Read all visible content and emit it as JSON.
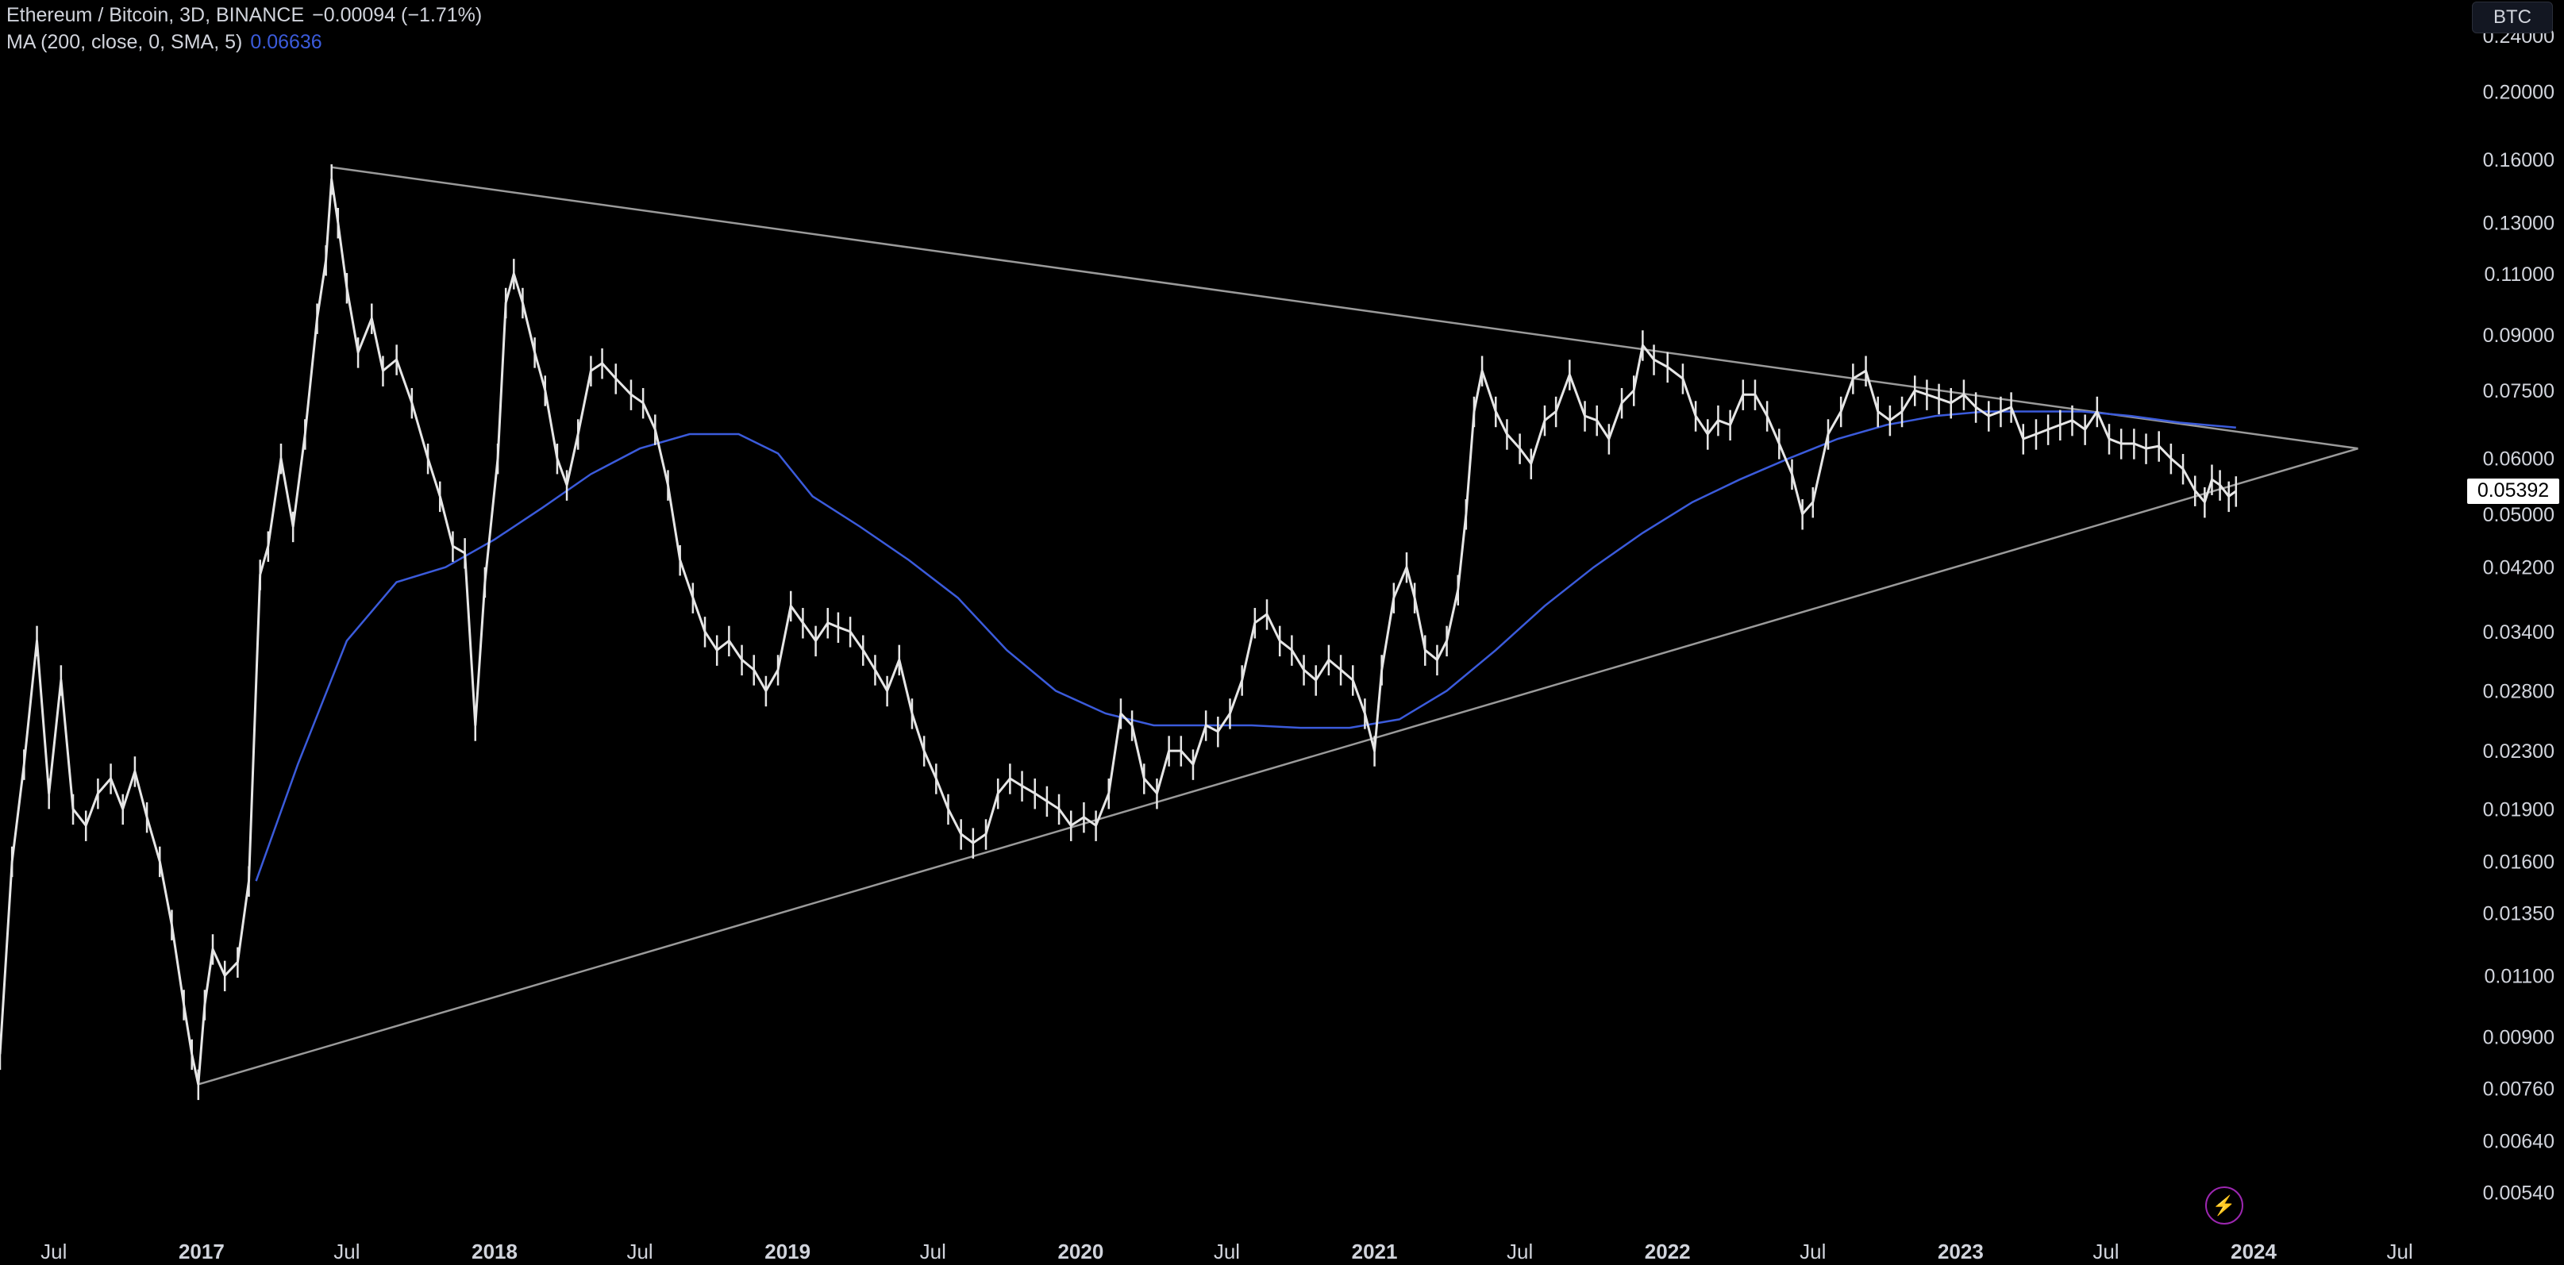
{
  "legend": {
    "symbol": "Ethereum / Bitcoin, 3D, BINANCE",
    "change": "−0.00094 (−1.71%)",
    "ma_label": "MA (200, close, 0, SMA, 5)",
    "ma_value": "0.06636"
  },
  "currency": "BTC",
  "last_price_label": "0.05392",
  "colors": {
    "background": "#000000",
    "price": "#e6e6e6",
    "ma": "#3b5bdb",
    "trendline": "#9a9a9a",
    "text": "#d1d4dc"
  },
  "icons": {
    "lightning": "lightning-icon"
  },
  "chart_data": {
    "type": "line",
    "y_scale": "log",
    "ylim": [
      0.0049,
      0.27
    ],
    "xlim": [
      "2016-04-25",
      "2024-09-15"
    ],
    "y_ticks": [
      "0.24000",
      "0.20000",
      "0.16000",
      "0.13000",
      "0.11000",
      "0.09000",
      "0.07500",
      "0.06000",
      "0.05000",
      "0.04200",
      "0.03400",
      "0.02800",
      "0.02300",
      "0.01900",
      "0.01600",
      "0.01350",
      "0.01100",
      "0.00900",
      "0.00760",
      "0.00640",
      "0.00540"
    ],
    "x_ticks": [
      {
        "label": "Jul",
        "date": "2016-07-01",
        "year": false
      },
      {
        "label": "2017",
        "date": "2017-01-01",
        "year": true
      },
      {
        "label": "Jul",
        "date": "2017-07-01",
        "year": false
      },
      {
        "label": "2018",
        "date": "2018-01-01",
        "year": true
      },
      {
        "label": "Jul",
        "date": "2018-07-01",
        "year": false
      },
      {
        "label": "2019",
        "date": "2019-01-01",
        "year": true
      },
      {
        "label": "Jul",
        "date": "2019-07-01",
        "year": false
      },
      {
        "label": "2020",
        "date": "2020-01-01",
        "year": true
      },
      {
        "label": "Jul",
        "date": "2020-07-01",
        "year": false
      },
      {
        "label": "2021",
        "date": "2021-01-01",
        "year": true
      },
      {
        "label": "Jul",
        "date": "2021-07-01",
        "year": false
      },
      {
        "label": "2022",
        "date": "2022-01-01",
        "year": true
      },
      {
        "label": "Jul",
        "date": "2022-07-01",
        "year": false
      },
      {
        "label": "2023",
        "date": "2023-01-01",
        "year": true
      },
      {
        "label": "Jul",
        "date": "2023-07-01",
        "year": false
      },
      {
        "label": "2024",
        "date": "2024-01-01",
        "year": true
      },
      {
        "label": "Jul",
        "date": "2024-07-01",
        "year": false
      }
    ],
    "price": [
      [
        "2016-04-25",
        0.0085
      ],
      [
        "2016-05-10",
        0.016
      ],
      [
        "2016-05-25",
        0.022
      ],
      [
        "2016-06-10",
        0.033
      ],
      [
        "2016-06-25",
        0.02
      ],
      [
        "2016-07-10",
        0.029
      ],
      [
        "2016-07-25",
        0.019
      ],
      [
        "2016-08-10",
        0.018
      ],
      [
        "2016-08-25",
        0.02
      ],
      [
        "2016-09-10",
        0.021
      ],
      [
        "2016-09-25",
        0.019
      ],
      [
        "2016-10-10",
        0.0215
      ],
      [
        "2016-10-25",
        0.0185
      ],
      [
        "2016-11-10",
        0.016
      ],
      [
        "2016-11-25",
        0.013
      ],
      [
        "2016-12-10",
        0.01
      ],
      [
        "2016-12-20",
        0.0085
      ],
      [
        "2016-12-28",
        0.0077
      ],
      [
        "2017-01-05",
        0.01
      ],
      [
        "2017-01-15",
        0.012
      ],
      [
        "2017-01-30",
        0.011
      ],
      [
        "2017-02-15",
        0.0115
      ],
      [
        "2017-03-01",
        0.015
      ],
      [
        "2017-03-15",
        0.041
      ],
      [
        "2017-03-25",
        0.045
      ],
      [
        "2017-04-10",
        0.06
      ],
      [
        "2017-04-25",
        0.048
      ],
      [
        "2017-05-10",
        0.065
      ],
      [
        "2017-05-25",
        0.095
      ],
      [
        "2017-06-05",
        0.115
      ],
      [
        "2017-06-12",
        0.15
      ],
      [
        "2017-06-20",
        0.13
      ],
      [
        "2017-07-01",
        0.105
      ],
      [
        "2017-07-15",
        0.085
      ],
      [
        "2017-08-01",
        0.095
      ],
      [
        "2017-08-15",
        0.08
      ],
      [
        "2017-09-01",
        0.083
      ],
      [
        "2017-09-20",
        0.072
      ],
      [
        "2017-10-10",
        0.06
      ],
      [
        "2017-10-25",
        0.053
      ],
      [
        "2017-11-10",
        0.045
      ],
      [
        "2017-11-25",
        0.044
      ],
      [
        "2017-12-08",
        0.025
      ],
      [
        "2017-12-20",
        0.04
      ],
      [
        "2018-01-05",
        0.06
      ],
      [
        "2018-01-15",
        0.1
      ],
      [
        "2018-01-25",
        0.11
      ],
      [
        "2018-02-05",
        0.1
      ],
      [
        "2018-02-20",
        0.085
      ],
      [
        "2018-03-05",
        0.075
      ],
      [
        "2018-03-20",
        0.06
      ],
      [
        "2018-04-01",
        0.055
      ],
      [
        "2018-04-15",
        0.065
      ],
      [
        "2018-05-01",
        0.08
      ],
      [
        "2018-05-15",
        0.082
      ],
      [
        "2018-06-01",
        0.078
      ],
      [
        "2018-06-20",
        0.074
      ],
      [
        "2018-07-05",
        0.072
      ],
      [
        "2018-07-20",
        0.066
      ],
      [
        "2018-08-05",
        0.055
      ],
      [
        "2018-08-20",
        0.043
      ],
      [
        "2018-09-05",
        0.038
      ],
      [
        "2018-09-20",
        0.034
      ],
      [
        "2018-10-05",
        0.032
      ],
      [
        "2018-10-20",
        0.033
      ],
      [
        "2018-11-05",
        0.031
      ],
      [
        "2018-11-20",
        0.03
      ],
      [
        "2018-12-05",
        0.028
      ],
      [
        "2018-12-20",
        0.03
      ],
      [
        "2019-01-05",
        0.037
      ],
      [
        "2019-01-20",
        0.035
      ],
      [
        "2019-02-05",
        0.033
      ],
      [
        "2019-02-20",
        0.035
      ],
      [
        "2019-03-05",
        0.0345
      ],
      [
        "2019-03-20",
        0.034
      ],
      [
        "2019-04-05",
        0.032
      ],
      [
        "2019-04-20",
        0.03
      ],
      [
        "2019-05-05",
        0.028
      ],
      [
        "2019-05-20",
        0.031
      ],
      [
        "2019-06-05",
        0.026
      ],
      [
        "2019-06-20",
        0.023
      ],
      [
        "2019-07-05",
        0.021
      ],
      [
        "2019-07-20",
        0.019
      ],
      [
        "2019-08-05",
        0.0175
      ],
      [
        "2019-08-20",
        0.017
      ],
      [
        "2019-09-05",
        0.0175
      ],
      [
        "2019-09-20",
        0.02
      ],
      [
        "2019-10-05",
        0.021
      ],
      [
        "2019-10-20",
        0.0205
      ],
      [
        "2019-11-05",
        0.02
      ],
      [
        "2019-11-20",
        0.0195
      ],
      [
        "2019-12-05",
        0.019
      ],
      [
        "2019-12-20",
        0.018
      ],
      [
        "2020-01-05",
        0.0185
      ],
      [
        "2020-01-20",
        0.018
      ],
      [
        "2020-02-05",
        0.02
      ],
      [
        "2020-02-20",
        0.026
      ],
      [
        "2020-03-05",
        0.025
      ],
      [
        "2020-03-20",
        0.021
      ],
      [
        "2020-04-05",
        0.02
      ],
      [
        "2020-04-20",
        0.023
      ],
      [
        "2020-05-05",
        0.023
      ],
      [
        "2020-05-20",
        0.022
      ],
      [
        "2020-06-05",
        0.025
      ],
      [
        "2020-06-20",
        0.0245
      ],
      [
        "2020-07-05",
        0.026
      ],
      [
        "2020-07-20",
        0.029
      ],
      [
        "2020-08-05",
        0.035
      ],
      [
        "2020-08-20",
        0.036
      ],
      [
        "2020-09-05",
        0.033
      ],
      [
        "2020-09-20",
        0.032
      ],
      [
        "2020-10-05",
        0.03
      ],
      [
        "2020-10-20",
        0.029
      ],
      [
        "2020-11-05",
        0.031
      ],
      [
        "2020-11-20",
        0.03
      ],
      [
        "2020-12-05",
        0.029
      ],
      [
        "2020-12-20",
        0.026
      ],
      [
        "2021-01-01",
        0.023
      ],
      [
        "2021-01-10",
        0.03
      ],
      [
        "2021-01-25",
        0.038
      ],
      [
        "2021-02-10",
        0.042
      ],
      [
        "2021-02-20",
        0.038
      ],
      [
        "2021-03-05",
        0.032
      ],
      [
        "2021-03-20",
        0.031
      ],
      [
        "2021-04-01",
        0.033
      ],
      [
        "2021-04-15",
        0.039
      ],
      [
        "2021-04-25",
        0.05
      ],
      [
        "2021-05-05",
        0.07
      ],
      [
        "2021-05-15",
        0.08
      ],
      [
        "2021-06-01",
        0.07
      ],
      [
        "2021-06-15",
        0.065
      ],
      [
        "2021-07-01",
        0.062
      ],
      [
        "2021-07-15",
        0.059
      ],
      [
        "2021-08-01",
        0.068
      ],
      [
        "2021-08-15",
        0.07
      ],
      [
        "2021-09-01",
        0.079
      ],
      [
        "2021-09-20",
        0.069
      ],
      [
        "2021-10-05",
        0.068
      ],
      [
        "2021-10-20",
        0.064
      ],
      [
        "2021-11-05",
        0.072
      ],
      [
        "2021-11-20",
        0.075
      ],
      [
        "2021-12-01",
        0.087
      ],
      [
        "2021-12-15",
        0.083
      ],
      [
        "2022-01-01",
        0.081
      ],
      [
        "2022-01-20",
        0.078
      ],
      [
        "2022-02-05",
        0.069
      ],
      [
        "2022-02-20",
        0.065
      ],
      [
        "2022-03-05",
        0.068
      ],
      [
        "2022-03-20",
        0.067
      ],
      [
        "2022-04-05",
        0.074
      ],
      [
        "2022-04-20",
        0.074
      ],
      [
        "2022-05-05",
        0.069
      ],
      [
        "2022-05-20",
        0.063
      ],
      [
        "2022-06-05",
        0.057
      ],
      [
        "2022-06-18",
        0.05
      ],
      [
        "2022-07-01",
        0.052
      ],
      [
        "2022-07-20",
        0.065
      ],
      [
        "2022-08-05",
        0.07
      ],
      [
        "2022-08-20",
        0.078
      ],
      [
        "2022-09-05",
        0.08
      ],
      [
        "2022-09-20",
        0.07
      ],
      [
        "2022-10-05",
        0.068
      ],
      [
        "2022-10-20",
        0.07
      ],
      [
        "2022-11-05",
        0.075
      ],
      [
        "2022-11-20",
        0.074
      ],
      [
        "2022-12-05",
        0.073
      ],
      [
        "2022-12-20",
        0.072
      ],
      [
        "2023-01-05",
        0.074
      ],
      [
        "2023-01-20",
        0.071
      ],
      [
        "2023-02-05",
        0.069
      ],
      [
        "2023-02-20",
        0.07
      ],
      [
        "2023-03-05",
        0.071
      ],
      [
        "2023-03-20",
        0.064
      ],
      [
        "2023-04-05",
        0.065
      ],
      [
        "2023-04-20",
        0.066
      ],
      [
        "2023-05-05",
        0.067
      ],
      [
        "2023-05-20",
        0.068
      ],
      [
        "2023-06-05",
        0.066
      ],
      [
        "2023-06-20",
        0.07
      ],
      [
        "2023-07-05",
        0.064
      ],
      [
        "2023-07-20",
        0.063
      ],
      [
        "2023-08-05",
        0.063
      ],
      [
        "2023-08-20",
        0.062
      ],
      [
        "2023-09-05",
        0.0625
      ],
      [
        "2023-09-20",
        0.06
      ],
      [
        "2023-10-05",
        0.058
      ],
      [
        "2023-10-20",
        0.054
      ],
      [
        "2023-11-01",
        0.052
      ],
      [
        "2023-11-10",
        0.056
      ],
      [
        "2023-11-20",
        0.055
      ],
      [
        "2023-12-01",
        0.053
      ],
      [
        "2023-12-10",
        0.0539
      ]
    ],
    "ma": [
      [
        "2017-03-10",
        0.015
      ],
      [
        "2017-05-01",
        0.022
      ],
      [
        "2017-07-01",
        0.033
      ],
      [
        "2017-09-01",
        0.04
      ],
      [
        "2017-11-01",
        0.042
      ],
      [
        "2018-01-01",
        0.046
      ],
      [
        "2018-03-01",
        0.051
      ],
      [
        "2018-05-01",
        0.057
      ],
      [
        "2018-07-01",
        0.062
      ],
      [
        "2018-09-01",
        0.065
      ],
      [
        "2018-11-01",
        0.065
      ],
      [
        "2018-12-20",
        0.061
      ],
      [
        "2019-02-01",
        0.053
      ],
      [
        "2019-04-01",
        0.048
      ],
      [
        "2019-06-01",
        0.043
      ],
      [
        "2019-08-01",
        0.038
      ],
      [
        "2019-10-01",
        0.032
      ],
      [
        "2019-12-01",
        0.028
      ],
      [
        "2020-02-01",
        0.026
      ],
      [
        "2020-04-01",
        0.025
      ],
      [
        "2020-06-01",
        0.025
      ],
      [
        "2020-08-01",
        0.025
      ],
      [
        "2020-10-01",
        0.0248
      ],
      [
        "2020-12-01",
        0.0248
      ],
      [
        "2021-02-01",
        0.0255
      ],
      [
        "2021-04-01",
        0.028
      ],
      [
        "2021-06-01",
        0.032
      ],
      [
        "2021-08-01",
        0.037
      ],
      [
        "2021-10-01",
        0.042
      ],
      [
        "2021-12-01",
        0.047
      ],
      [
        "2022-02-01",
        0.052
      ],
      [
        "2022-04-01",
        0.056
      ],
      [
        "2022-06-01",
        0.06
      ],
      [
        "2022-08-01",
        0.064
      ],
      [
        "2022-10-01",
        0.067
      ],
      [
        "2022-12-01",
        0.069
      ],
      [
        "2023-02-01",
        0.07
      ],
      [
        "2023-04-01",
        0.07
      ],
      [
        "2023-06-01",
        0.07
      ],
      [
        "2023-08-01",
        0.069
      ],
      [
        "2023-10-01",
        0.0675
      ],
      [
        "2023-12-10",
        0.0664
      ]
    ],
    "trendlines": [
      {
        "name": "upper",
        "from": [
          "2017-06-12",
          0.156
        ],
        "to": [
          "2024-05-10",
          0.062
        ]
      },
      {
        "name": "lower",
        "from": [
          "2016-12-28",
          0.0077
        ],
        "to": [
          "2024-05-10",
          0.062
        ]
      }
    ],
    "last_price": 0.05392
  }
}
